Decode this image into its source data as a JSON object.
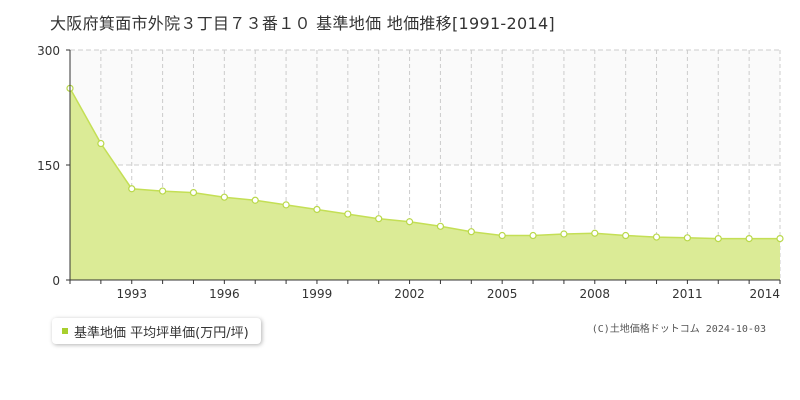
{
  "title": "大阪府箕面市外院３丁目７３番１０ 基準地価 地価推移[1991-2014]",
  "legend": {
    "label": "基準地価 平均坪単価(万円/坪)"
  },
  "copyright": "(C)土地価格ドットコム 2024-10-03",
  "colors": {
    "fill": "#dbeb96",
    "line": "#c4df55",
    "marker_fill": "#ffffff",
    "marker_stroke": "#b9d84a",
    "grid": "#cccccc",
    "upper_band": "#fafafa",
    "legend_swatch": "#a8cf2e"
  },
  "chart_data": {
    "type": "area",
    "x": [
      1991,
      1992,
      1993,
      1994,
      1995,
      1996,
      1997,
      1998,
      1999,
      2000,
      2001,
      2002,
      2003,
      2004,
      2005,
      2006,
      2007,
      2008,
      2009,
      2010,
      2011,
      2012,
      2013,
      2014
    ],
    "series": [
      {
        "name": "基準地価 平均坪単価(万円/坪)",
        "values": [
          250,
          178,
          119,
          116,
          114,
          108,
          104,
          98,
          92,
          86,
          80,
          76,
          70,
          63,
          58,
          58,
          60,
          61,
          58,
          56,
          55,
          54,
          54,
          54
        ]
      }
    ],
    "xlim": [
      1991,
      2014
    ],
    "ylim": [
      0,
      300
    ],
    "yticks": [
      0,
      150,
      300
    ],
    "xticks": [
      1993,
      1996,
      1999,
      2002,
      2005,
      2008,
      2011,
      2014
    ],
    "grid": true,
    "legend_position": "bottom-left"
  }
}
